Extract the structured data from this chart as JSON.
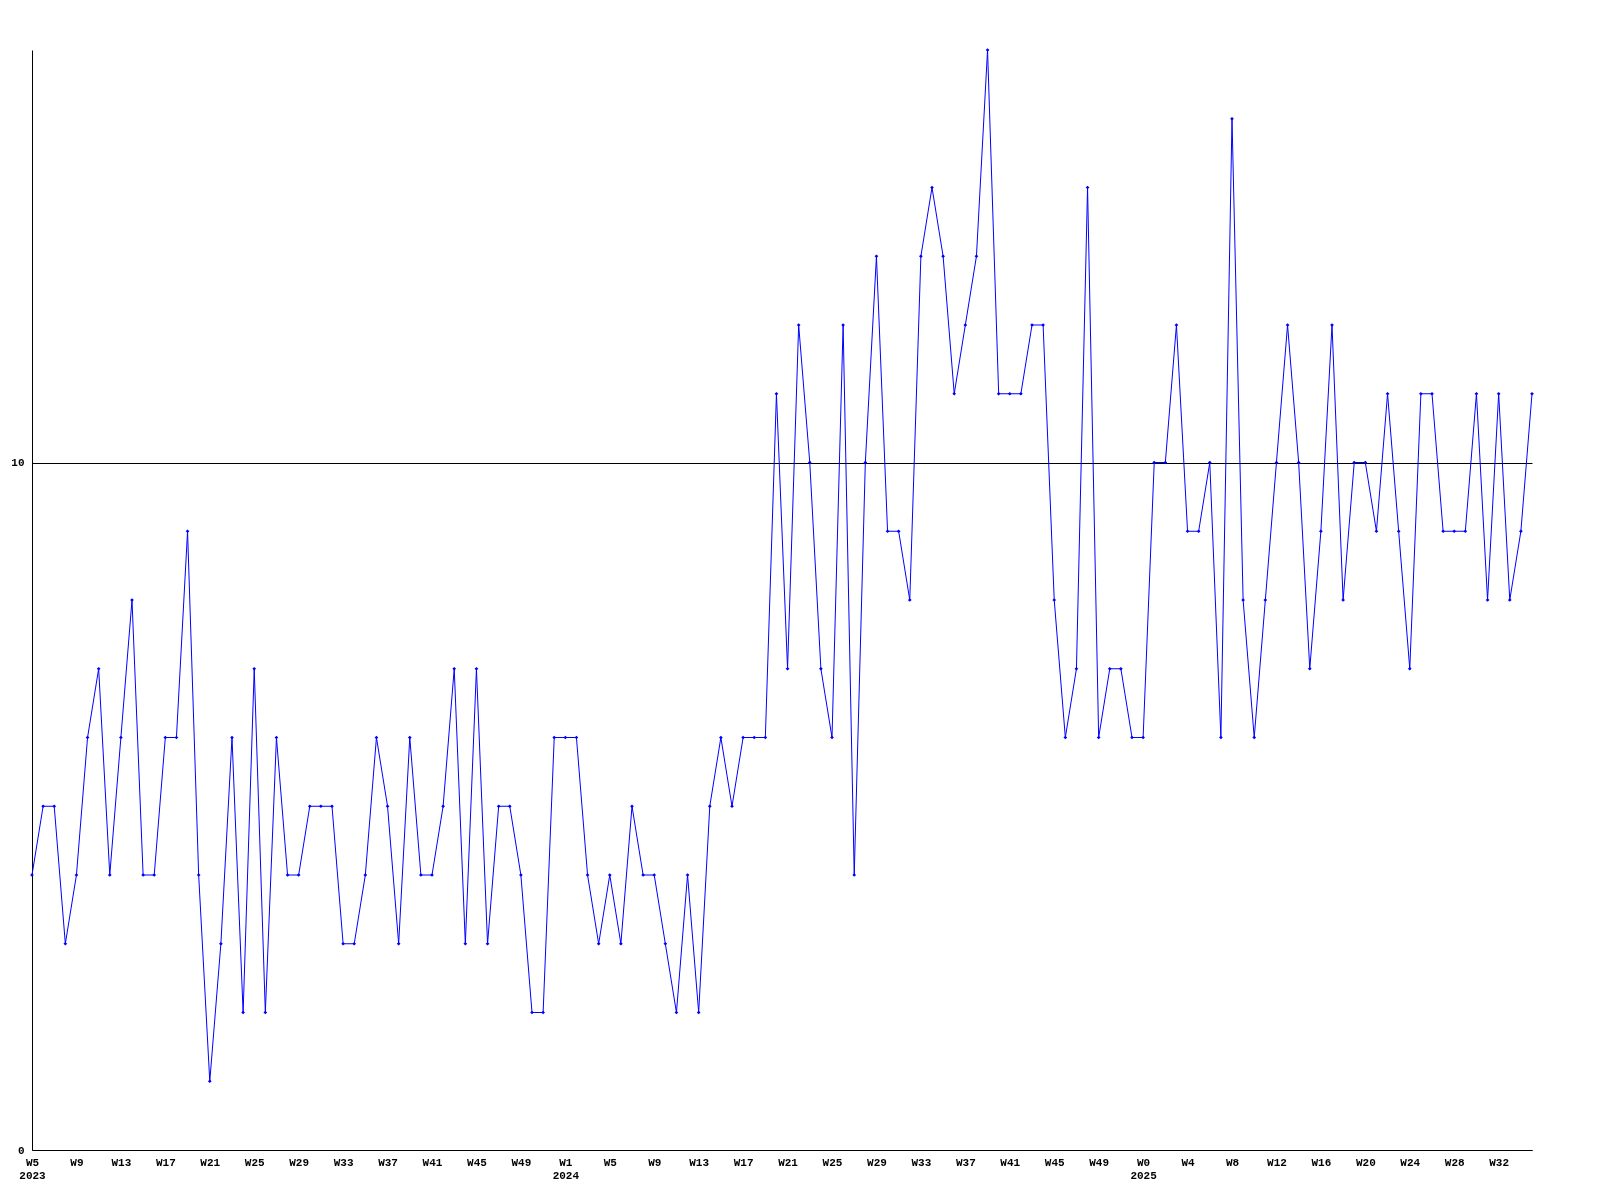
{
  "chart_data": {
    "type": "line",
    "categories": [
      "W5\n2023",
      null,
      null,
      null,
      "W9",
      null,
      null,
      null,
      "W13",
      null,
      null,
      null,
      "W17",
      null,
      null,
      null,
      "W21",
      null,
      null,
      null,
      "W25",
      null,
      null,
      null,
      "W29",
      null,
      null,
      null,
      "W33",
      null,
      null,
      null,
      "W37",
      null,
      null,
      null,
      "W41",
      null,
      null,
      null,
      "W45",
      null,
      null,
      null,
      "W49",
      null,
      null,
      null,
      "W1\n2024",
      null,
      null,
      null,
      "W5",
      null,
      null,
      null,
      "W9",
      null,
      null,
      null,
      "W13",
      null,
      null,
      null,
      "W17",
      null,
      null,
      null,
      "W21",
      null,
      null,
      null,
      "W25",
      null,
      null,
      null,
      "W29",
      null,
      null,
      null,
      "W33",
      null,
      null,
      null,
      "W37",
      null,
      null,
      null,
      "W41",
      null,
      null,
      null,
      "W45",
      null,
      null,
      null,
      "W49",
      null,
      null,
      null,
      "W0\n2025",
      null,
      null,
      null,
      "W4",
      null,
      null,
      null,
      "W8",
      null,
      null,
      null,
      "W12",
      null,
      null,
      null,
      "W16",
      null,
      null,
      null,
      "W20",
      null,
      null,
      null,
      "W24",
      null,
      null,
      null,
      "W28",
      null,
      null,
      null,
      "W32",
      null,
      null,
      null
    ],
    "series": [
      {
        "color": "#0000ff",
        "values": [
          4,
          5,
          5,
          3,
          4,
          6,
          7,
          4,
          6,
          8,
          4,
          4,
          6,
          6,
          9,
          4,
          1,
          3,
          6,
          2,
          7,
          2,
          6,
          4,
          4,
          5,
          5,
          5,
          3,
          3,
          4,
          6,
          5,
          3,
          6,
          4,
          4,
          5,
          7,
          3,
          7,
          3,
          5,
          5,
          4,
          2,
          2,
          6,
          6,
          6,
          4,
          3,
          4,
          3,
          5,
          4,
          4,
          3,
          2,
          4,
          2,
          5,
          6,
          5,
          6,
          6,
          6,
          11,
          7,
          12,
          10,
          7,
          6,
          12,
          4,
          10,
          13,
          9,
          9,
          8,
          13,
          14,
          13,
          11,
          12,
          13,
          16,
          11,
          11,
          11,
          12,
          12,
          8,
          6,
          7,
          14,
          6,
          7,
          7,
          6,
          6,
          10,
          10,
          12,
          9,
          9,
          10,
          6,
          15,
          8,
          6,
          8,
          10,
          12,
          10,
          7,
          9,
          12,
          8,
          10,
          10,
          9,
          11,
          9,
          7,
          11,
          11,
          9,
          9,
          9,
          11,
          8,
          11,
          8,
          9,
          11
        ]
      }
    ],
    "ylim": [
      0,
      16
    ],
    "yticks": [
      0,
      10
    ],
    "grid": "y",
    "marker": "diamond",
    "line_style": "solid",
    "legend": false
  }
}
